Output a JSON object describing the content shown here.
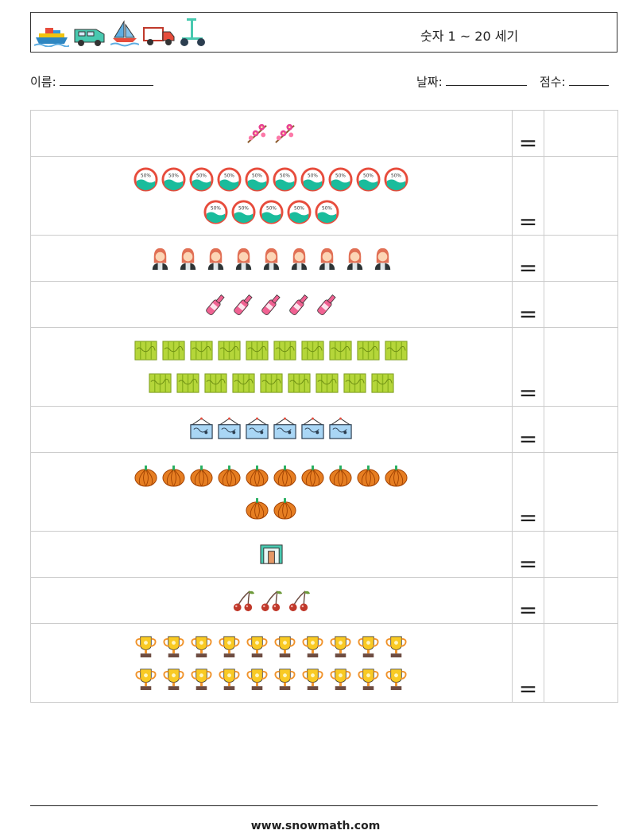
{
  "header": {
    "title": "숫자 1 ~ 20 세기",
    "vehicle_icons": [
      "ship-icon",
      "van-icon",
      "sailboat-icon",
      "truck-icon",
      "scooter-icon"
    ]
  },
  "info": {
    "name_label": "이름:",
    "date_label": "날짜:",
    "score_label": "점수:"
  },
  "worksheet": {
    "equals_sign": "=",
    "rows": [
      {
        "icon": "cherry-blossom-icon",
        "count": 2
      },
      {
        "icon": "sale-badge-icon",
        "count": 15
      },
      {
        "icon": "woman-icon",
        "count": 9
      },
      {
        "icon": "bottle-icon",
        "count": 5
      },
      {
        "icon": "green-fabric-icon",
        "count": 19
      },
      {
        "icon": "hanging-sign-icon",
        "count": 6
      },
      {
        "icon": "pumpkin-icon",
        "count": 12
      },
      {
        "icon": "doorway-icon",
        "count": 1
      },
      {
        "icon": "cherries-icon",
        "count": 3
      },
      {
        "icon": "trophy-icon",
        "count": 20
      }
    ]
  },
  "footer": {
    "website": "www.snowmath.com"
  }
}
